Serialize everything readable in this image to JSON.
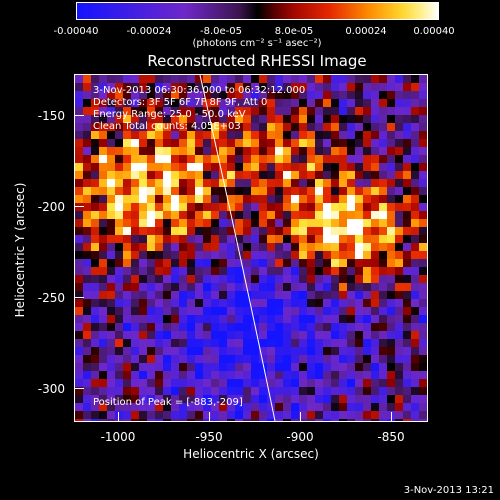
{
  "colorbar": {
    "ticks": [
      "-0.00040",
      "-0.00024",
      "-8.0e-05",
      "8.0e-05",
      "0.00024",
      "0.00040"
    ],
    "units": "(photons cm⁻² s⁻¹ asec⁻²)",
    "range": [
      -0.0004,
      0.0004
    ]
  },
  "title": "Reconstructed RHESSI Image",
  "annotations": {
    "time": "3-Nov-2013 06:30:36.000 to 06:32:12.000",
    "detectors": "Detectors: 3F 5F 6F 7F 8F 9F, Att 0",
    "energy": "Energy Range: 25.0 - 50.0 keV",
    "clean": "Clean   Total counts: 4.05E+03",
    "peak": "Position of Peak = [-883,-209]"
  },
  "axes": {
    "xlabel": "Heliocentric X (arcsec)",
    "ylabel": "Heliocentric Y (arcsec)",
    "xticks": [
      "-1000",
      "-950",
      "-900",
      "-850"
    ],
    "yticks": [
      "-150",
      "-200",
      "-250",
      "-300"
    ],
    "xlim": [
      -1023,
      -828
    ],
    "ylim": [
      -320,
      -129
    ]
  },
  "footer": "3-Nov-2013 13:21"
}
